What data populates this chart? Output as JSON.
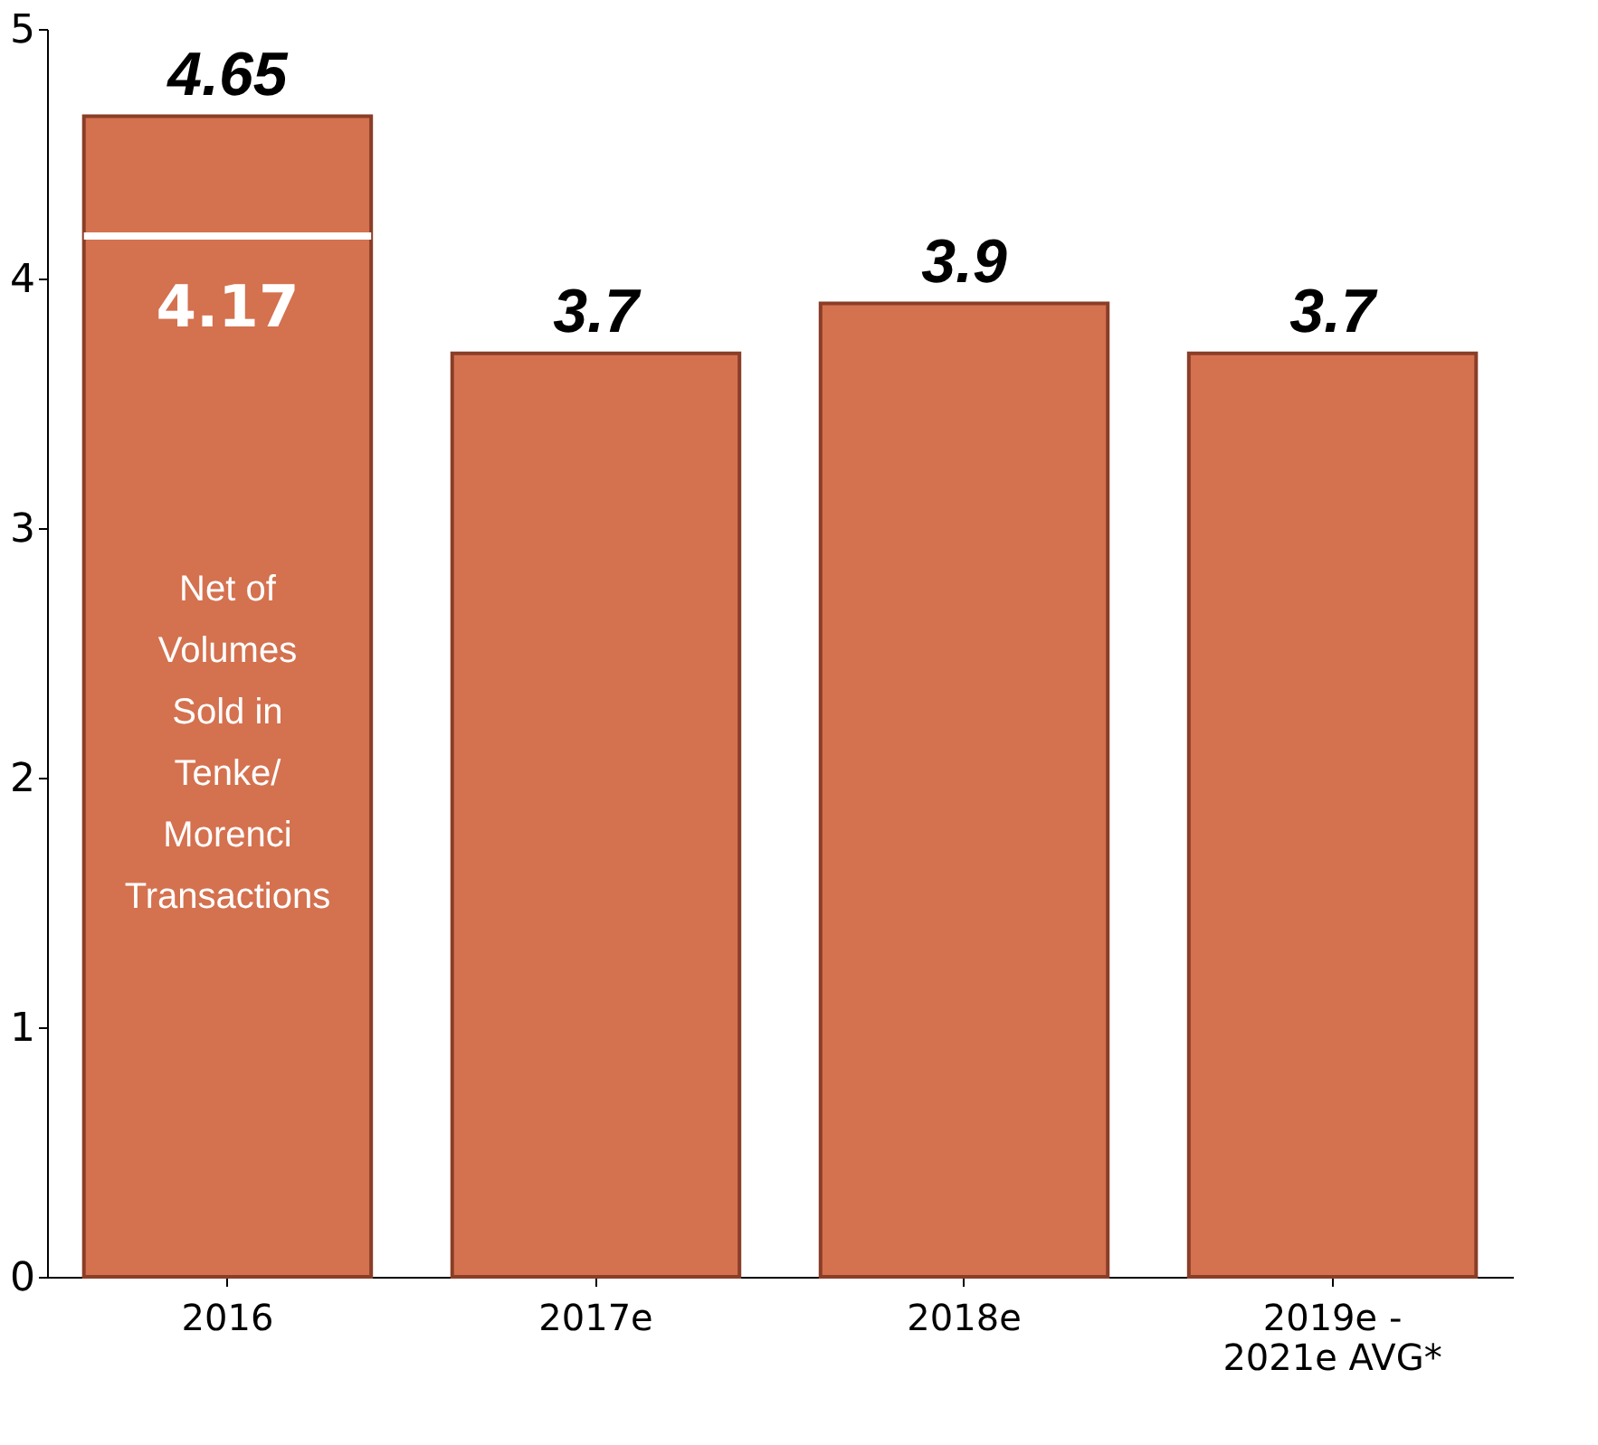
{
  "chart_data": {
    "type": "bar",
    "categories": [
      "2016",
      "2017e",
      "2018e",
      "2019e -\n2021e AVG*"
    ],
    "values": [
      4.65,
      3.7,
      3.9,
      3.7
    ],
    "color": "#d4714f",
    "ylim": [
      0,
      5
    ],
    "yticks": [
      0,
      1,
      2,
      3,
      4,
      5
    ],
    "grid": false,
    "data_labels": true,
    "ref_lines": [
      {
        "axis": "y",
        "value": 4.17,
        "label": "4.17",
        "color": "#ffffff"
      }
    ],
    "annotations": [
      "Net of\nVolumes\nSold in\nTenke/\nMorenci\nTransactions"
    ]
  }
}
